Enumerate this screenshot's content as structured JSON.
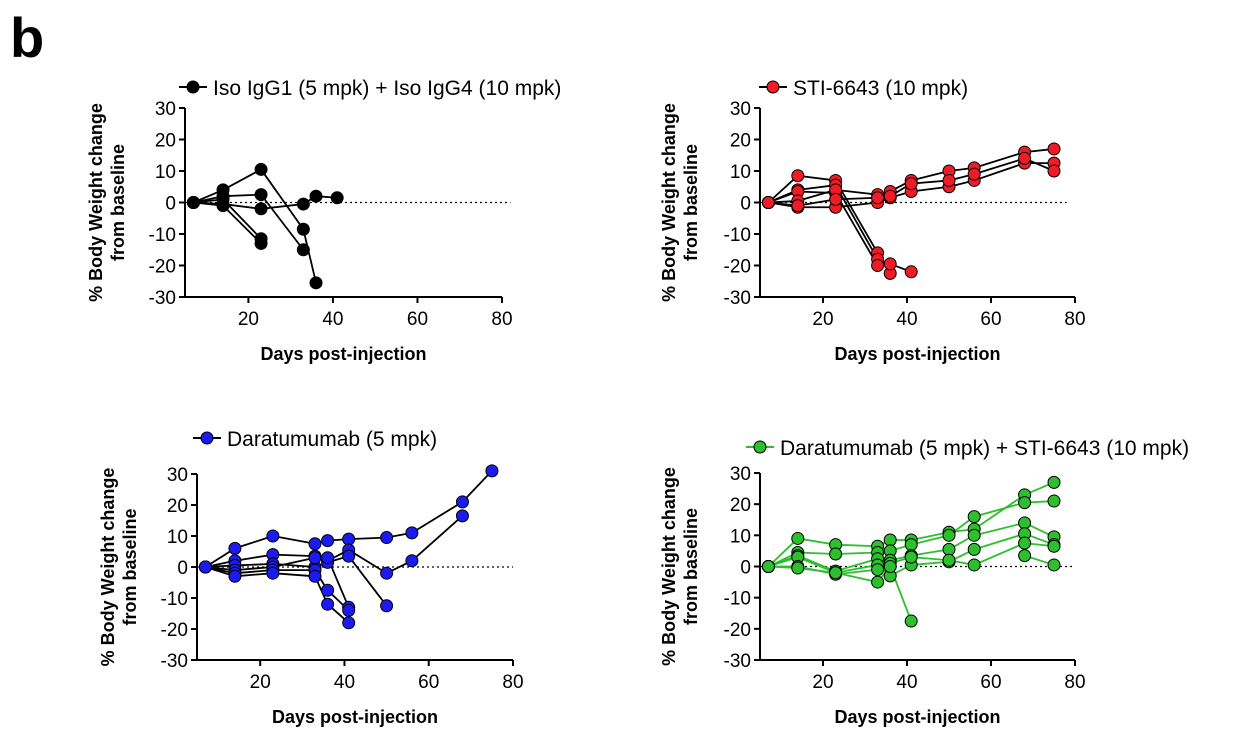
{
  "figure": {
    "panel_label": "b"
  },
  "chart_data": [
    {
      "type": "line",
      "legend": "Iso IgG1 (5 mpk) + Iso IgG4 (10 mpk)",
      "legend_placement": "top",
      "color": "#000000",
      "line_color": "#000000",
      "xlabel": "Days post-injection",
      "ylabel": "% Body Weight change from baseline",
      "xlim": [
        5,
        80
      ],
      "ylim": [
        -30,
        30
      ],
      "xticks": [
        20,
        40,
        60,
        80
      ],
      "yticks": [
        -30,
        -20,
        -10,
        0,
        10,
        20,
        30
      ],
      "reference_line_y": 0,
      "reference_line_x_end": 82,
      "series": [
        {
          "x": [
            7,
            14,
            23,
            33,
            36
          ],
          "y": [
            0,
            4,
            10.5,
            -8.5,
            -25.5
          ]
        },
        {
          "x": [
            7,
            14,
            23,
            33
          ],
          "y": [
            0,
            2,
            2.5,
            -15
          ]
        },
        {
          "x": [
            7,
            14,
            23
          ],
          "y": [
            0,
            1,
            -11.5
          ]
        },
        {
          "x": [
            7,
            14,
            23
          ],
          "y": [
            0,
            -1,
            -13
          ]
        },
        {
          "x": [
            7,
            14,
            23,
            33,
            36,
            41
          ],
          "y": [
            0,
            -0.5,
            -2,
            -0.5,
            2,
            1.5
          ]
        }
      ]
    },
    {
      "type": "line",
      "legend": "STI-6643 (10 mpk)",
      "legend_placement": "top",
      "color": "#ee1c24",
      "line_color": "#000000",
      "xlabel": "Days post-injection",
      "ylabel": "% Body Weight change from baseline",
      "xlim": [
        5,
        80
      ],
      "ylim": [
        -30,
        30
      ],
      "xticks": [
        20,
        40,
        60,
        80
      ],
      "yticks": [
        -30,
        -20,
        -10,
        0,
        10,
        20,
        30
      ],
      "reference_line_y": 0,
      "reference_line_x_end": 78,
      "series": [
        {
          "x": [
            7,
            14,
            23,
            33,
            36
          ],
          "y": [
            0,
            8.5,
            7,
            -16,
            -22.5
          ]
        },
        {
          "x": [
            7,
            14,
            23,
            33,
            36,
            41
          ],
          "y": [
            0,
            4,
            5.5,
            -18,
            -19.5,
            -22
          ]
        },
        {
          "x": [
            7,
            14,
            23,
            33
          ],
          "y": [
            0,
            3.5,
            3,
            -20
          ]
        },
        {
          "x": [
            7,
            14,
            23,
            33,
            36,
            41,
            50,
            56,
            68,
            75
          ],
          "y": [
            0,
            0.5,
            4,
            2.5,
            3.5,
            7,
            10,
            11,
            16,
            17
          ]
        },
        {
          "x": [
            7,
            14,
            23,
            33,
            36,
            41,
            50,
            56,
            68,
            75
          ],
          "y": [
            0,
            -1.5,
            -1.5,
            0,
            1.5,
            3.5,
            5,
            7,
            12.5,
            12.5
          ]
        },
        {
          "x": [
            7,
            14,
            23,
            33,
            36,
            41,
            50,
            56,
            68,
            75
          ],
          "y": [
            0,
            -1,
            1,
            1.5,
            2,
            6,
            7,
            9,
            14,
            10
          ]
        }
      ]
    },
    {
      "type": "line",
      "legend": "Daratumumab (5 mpk)",
      "legend_placement": "top",
      "color": "#1b1bf0",
      "line_color": "#000000",
      "xlabel": "Days post-injection",
      "ylabel": "% Body Weight change from baseline",
      "xlim": [
        5,
        80
      ],
      "ylim": [
        -30,
        30
      ],
      "xticks": [
        20,
        40,
        60,
        80
      ],
      "yticks": [
        -30,
        -20,
        -10,
        0,
        10,
        20,
        30
      ],
      "reference_line_y": 0,
      "reference_line_x_end": 80,
      "series": [
        {
          "x": [
            7,
            14,
            23,
            33,
            36,
            41,
            50,
            56,
            68,
            75
          ],
          "y": [
            0,
            6,
            10,
            7.5,
            8.5,
            9,
            9.5,
            11,
            21,
            31
          ]
        },
        {
          "x": [
            7,
            14,
            23,
            33,
            36,
            41,
            50,
            56,
            68
          ],
          "y": [
            0,
            2,
            4,
            3.5,
            2,
            5.5,
            -2,
            2,
            16.5
          ]
        },
        {
          "x": [
            7,
            14,
            23,
            33,
            36,
            41,
            50
          ],
          "y": [
            0,
            0.5,
            1,
            0,
            1.5,
            3.5,
            -12.5
          ]
        },
        {
          "x": [
            7,
            14,
            23,
            33,
            36,
            41
          ],
          "y": [
            0,
            -1,
            0,
            3,
            3,
            -13
          ]
        },
        {
          "x": [
            7,
            14,
            23,
            33,
            36,
            41
          ],
          "y": [
            0,
            -2,
            -1,
            -1,
            -7.5,
            -14
          ]
        },
        {
          "x": [
            7,
            14,
            23,
            33,
            36,
            41
          ],
          "y": [
            0,
            -3,
            -2,
            -3,
            -12,
            -18
          ]
        }
      ]
    },
    {
      "type": "line",
      "legend": "Daratumumab (5 mpk) + STI-6643 (10 mpk)",
      "legend_placement": "top",
      "color": "#2dbf2d",
      "line_color": "#2dbf2d",
      "xlabel": "Days post-injection",
      "ylabel": "% Body Weight change from baseline",
      "xlim": [
        5,
        80
      ],
      "ylim": [
        -30,
        30
      ],
      "xticks": [
        20,
        40,
        60,
        80
      ],
      "yticks": [
        -30,
        -20,
        -10,
        0,
        10,
        20,
        30
      ],
      "reference_line_y": 0,
      "reference_line_x_end": 80,
      "series": [
        {
          "x": [
            7,
            14,
            23,
            33,
            36,
            41,
            50,
            56,
            68,
            75
          ],
          "y": [
            0,
            9,
            7,
            6.5,
            8.5,
            8.5,
            11,
            12,
            23,
            27
          ]
        },
        {
          "x": [
            7,
            14,
            23,
            33,
            36,
            41,
            50,
            56,
            68,
            75
          ],
          "y": [
            0,
            4.5,
            4,
            4.5,
            5,
            7,
            10,
            16,
            20.5,
            21
          ]
        },
        {
          "x": [
            7,
            14,
            23,
            33,
            36,
            41,
            50,
            56,
            68,
            75
          ],
          "y": [
            0,
            3.5,
            -1.5,
            2.5,
            2,
            3.5,
            5.5,
            10,
            14,
            9.5
          ]
        },
        {
          "x": [
            7,
            14,
            23,
            33,
            36,
            41,
            50,
            56,
            68,
            75
          ],
          "y": [
            0,
            3,
            -2,
            0.5,
            -3,
            0.5,
            1.5,
            5.5,
            10.5,
            7
          ]
        },
        {
          "x": [
            7,
            14,
            23,
            33,
            36,
            41,
            50,
            56,
            68,
            75
          ],
          "y": [
            0,
            0,
            -2.5,
            -1,
            1,
            3,
            2,
            0.5,
            7.5,
            6.5
          ]
        },
        {
          "x": [
            7,
            14,
            23,
            33,
            36,
            41
          ],
          "y": [
            0,
            -0.5,
            -2,
            -5,
            0,
            -17.5
          ]
        },
        {
          "x": [
            68,
            75
          ],
          "y": [
            3.5,
            0.5
          ]
        }
      ]
    }
  ]
}
